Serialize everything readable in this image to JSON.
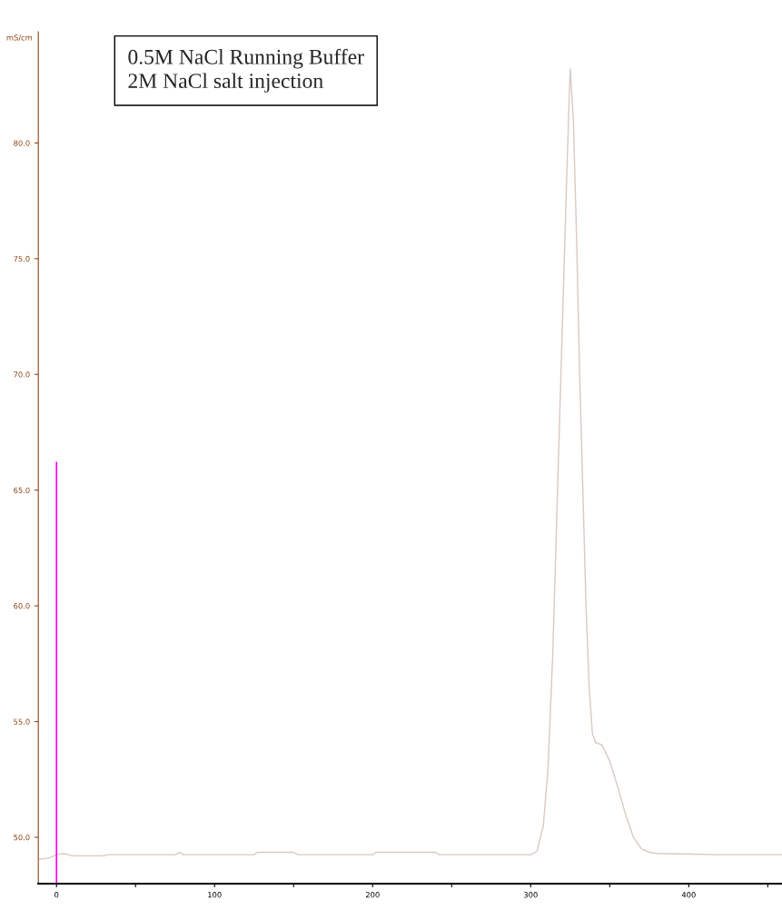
{
  "chart_data": {
    "type": "line",
    "ylabel": "mS/cm",
    "annotations": [
      "0.5M NaCl Running Buffer\n2M NaCl salt injection"
    ],
    "series": [
      {
        "color": "#d9c9c2",
        "x": [
          -11,
          -5,
          0,
          5,
          10,
          30,
          32,
          75,
          78,
          80,
          125,
          127,
          150,
          153,
          200,
          202,
          240,
          242,
          300,
          304,
          308,
          311,
          314,
          317,
          320,
          323,
          325,
          327,
          329,
          331,
          333,
          335,
          337,
          339,
          341,
          345,
          350,
          355,
          360,
          365,
          370,
          375,
          380,
          420,
          459
        ],
        "values": [
          49.05,
          49.1,
          49.25,
          49.3,
          49.2,
          49.2,
          49.25,
          49.25,
          49.35,
          49.25,
          49.25,
          49.35,
          49.35,
          49.25,
          49.25,
          49.35,
          49.35,
          49.25,
          49.25,
          49.4,
          50.5,
          53,
          58,
          65,
          72,
          79,
          83.2,
          81,
          76,
          70,
          65,
          60,
          56.5,
          54.5,
          54.1,
          54.0,
          53.3,
          52.2,
          51.0,
          50.0,
          49.5,
          49.35,
          49.3,
          49.25,
          49.25
        ]
      },
      {
        "color": "#ff00ff",
        "x": [
          0,
          0
        ],
        "values": [
          48,
          66.2
        ]
      }
    ],
    "xlim": [
      -11.5,
      459
    ],
    "ylim": [
      48,
      84.8
    ],
    "xticks": [
      0,
      {
        "value": 50,
        "label": null
      },
      100,
      {
        "value": 150,
        "label": null
      },
      200,
      {
        "value": 250,
        "label": null
      },
      300,
      {
        "value": 350,
        "label": null
      },
      400,
      {
        "value": 450,
        "label": null
      }
    ],
    "yticks": [
      {
        "value": 50,
        "label": "50.0"
      },
      {
        "value": 55,
        "label": "55.0"
      },
      {
        "value": 60,
        "label": "60.0"
      },
      {
        "value": 65,
        "label": "65.0"
      },
      {
        "value": 70,
        "label": "70.0"
      },
      {
        "value": 75,
        "label": "75.0"
      },
      {
        "value": 80,
        "label": "80.0"
      }
    ],
    "grid": false,
    "legend": false
  }
}
